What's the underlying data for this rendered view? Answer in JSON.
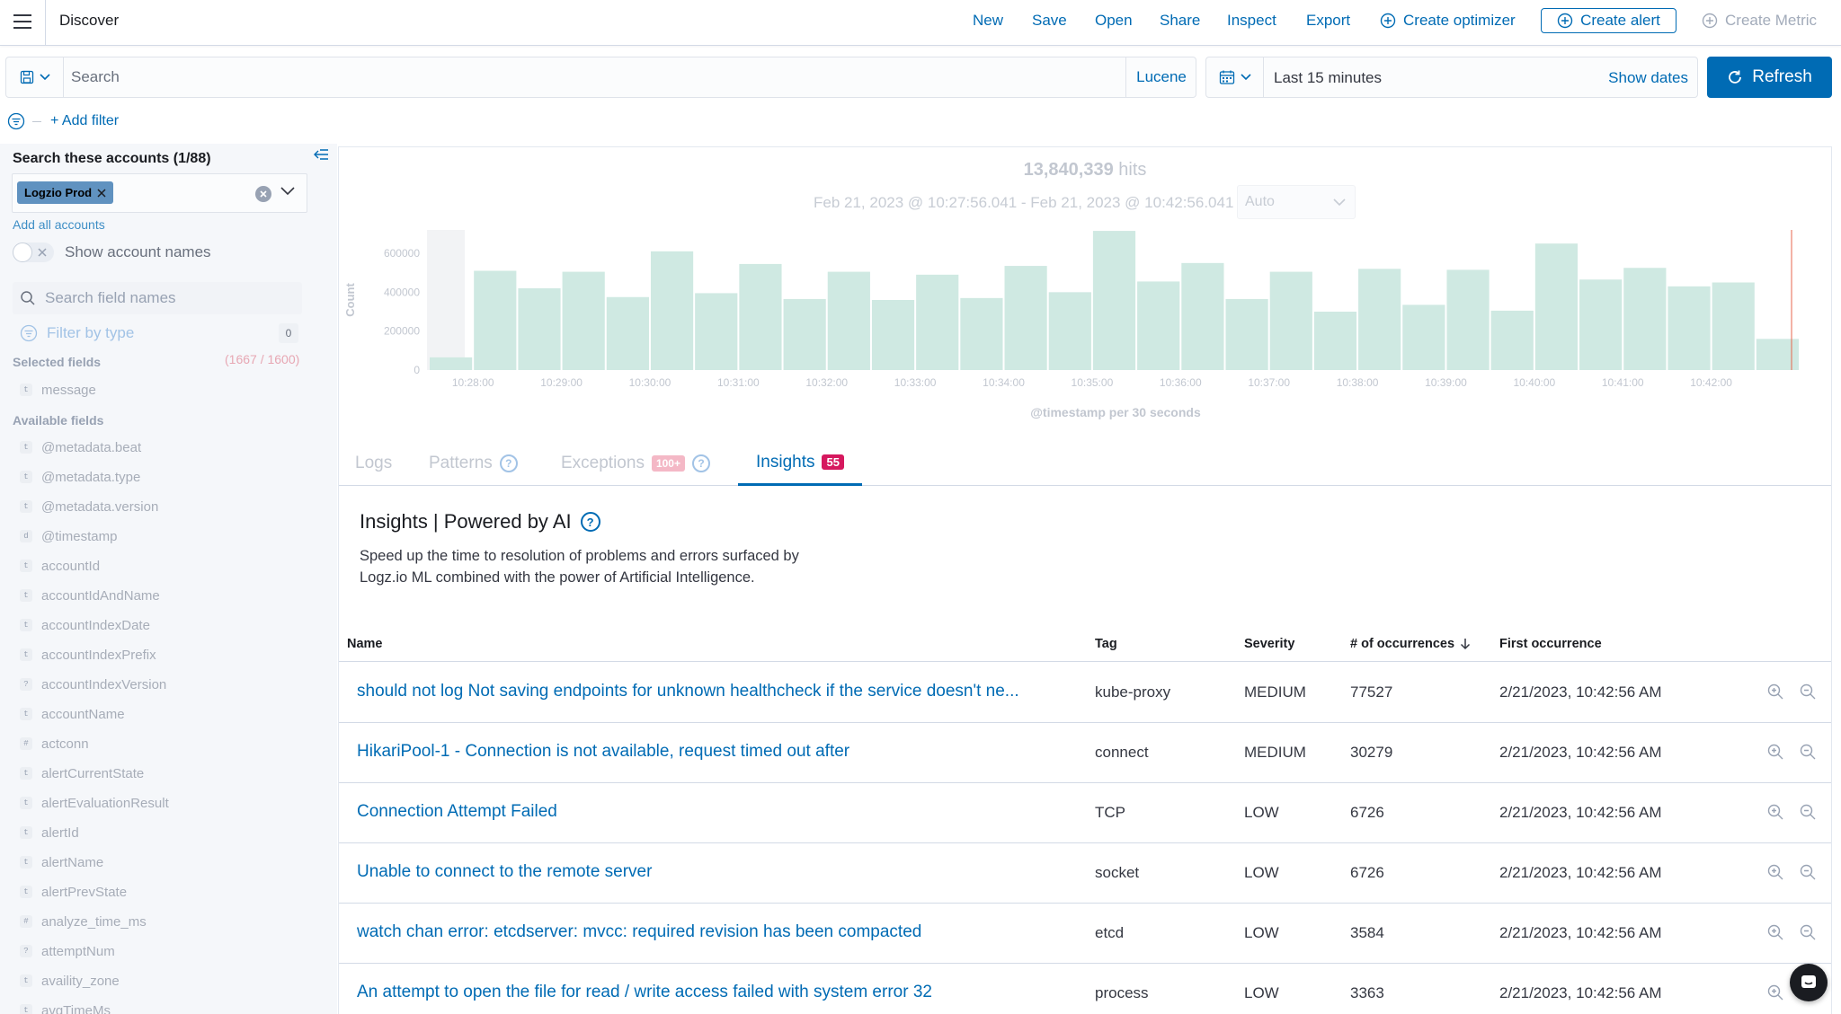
{
  "header": {
    "title": "Discover",
    "links": [
      {
        "label": "New",
        "name": "new-link"
      },
      {
        "label": "Save",
        "name": "save-link"
      },
      {
        "label": "Open",
        "name": "open-link"
      },
      {
        "label": "Share",
        "name": "share-link"
      },
      {
        "label": "Inspect",
        "name": "inspect-link"
      },
      {
        "label": "Export",
        "name": "export-link"
      }
    ],
    "create_optimizer": "Create optimizer",
    "create_alert": "Create alert",
    "create_metric": "Create Metric"
  },
  "query": {
    "placeholder": "Search",
    "language": "Lucene",
    "time_range": "Last 15 minutes",
    "show_dates": "Show dates",
    "refresh": "Refresh"
  },
  "filters": {
    "add_filter": "+ Add filter"
  },
  "sidebar": {
    "accounts_title": "Search these accounts (1/88)",
    "selected_account": "Logzio Prod",
    "add_all": "Add all accounts",
    "show_account_names": "Show account names",
    "field_search_placeholder": "Search field names",
    "filter_by_type": "Filter by type",
    "filter_count": "0",
    "selected_fields_title": "Selected fields",
    "selected_fields_count": "(1667 / 1600)",
    "selected_fields": [
      {
        "type": "t",
        "name": "message"
      }
    ],
    "available_fields_title": "Available fields",
    "available_fields": [
      {
        "type": "t",
        "name": "@metadata.beat"
      },
      {
        "type": "t",
        "name": "@metadata.type"
      },
      {
        "type": "t",
        "name": "@metadata.version"
      },
      {
        "type": "d",
        "name": "@timestamp"
      },
      {
        "type": "t",
        "name": "accountId"
      },
      {
        "type": "t",
        "name": "accountIdAndName"
      },
      {
        "type": "t",
        "name": "accountIndexDate"
      },
      {
        "type": "t",
        "name": "accountIndexPrefix"
      },
      {
        "type": "?",
        "name": "accountIndexVersion"
      },
      {
        "type": "t",
        "name": "accountName"
      },
      {
        "type": "#",
        "name": "actconn"
      },
      {
        "type": "t",
        "name": "alertCurrentState"
      },
      {
        "type": "t",
        "name": "alertEvaluationResult"
      },
      {
        "type": "t",
        "name": "alertId"
      },
      {
        "type": "t",
        "name": "alertName"
      },
      {
        "type": "t",
        "name": "alertPrevState"
      },
      {
        "type": "#",
        "name": "analyze_time_ms"
      },
      {
        "type": "?",
        "name": "attemptNum"
      },
      {
        "type": "t",
        "name": "availity_zone"
      },
      {
        "type": "t",
        "name": "avgTimeMs"
      }
    ]
  },
  "histogram": {
    "hits_value": "13,840,339",
    "hits_label": "hits",
    "date_range": "Feb 21, 2023 @ 10:27:56.041 - Feb 21, 2023 @ 10:42:56.041",
    "interval": "Auto",
    "x_axis_title": "@timestamp per 30 seconds"
  },
  "chart_data": {
    "type": "bar",
    "title": "",
    "xlabel": "@timestamp per 30 seconds",
    "ylabel": "Count",
    "ylim": [
      0,
      720000
    ],
    "y_ticks": [
      "0",
      "200000",
      "400000",
      "600000"
    ],
    "x_tick_labels": [
      "10:28:00",
      "10:29:00",
      "10:30:00",
      "10:31:00",
      "10:32:00",
      "10:33:00",
      "10:34:00",
      "10:35:00",
      "10:36:00",
      "10:37:00",
      "10:38:00",
      "10:39:00",
      "10:40:00",
      "10:41:00",
      "10:42:00"
    ],
    "categories": [
      "10:27:30",
      "10:28:00",
      "10:28:30",
      "10:29:00",
      "10:29:30",
      "10:30:00",
      "10:30:30",
      "10:31:00",
      "10:31:30",
      "10:32:00",
      "10:32:30",
      "10:33:00",
      "10:33:30",
      "10:34:00",
      "10:34:30",
      "10:35:00",
      "10:35:30",
      "10:36:00",
      "10:36:30",
      "10:37:00",
      "10:37:30",
      "10:38:00",
      "10:38:30",
      "10:39:00",
      "10:39:30",
      "10:40:00",
      "10:40:30",
      "10:41:00",
      "10:41:30",
      "10:42:00",
      "10:42:30"
    ],
    "values": [
      65000,
      510000,
      420000,
      505000,
      375000,
      610000,
      395000,
      545000,
      365000,
      505000,
      360000,
      490000,
      370000,
      535000,
      400000,
      715000,
      455000,
      550000,
      365000,
      505000,
      300000,
      520000,
      335000,
      515000,
      305000,
      650000,
      465000,
      525000,
      430000,
      450000,
      160000
    ],
    "colors": {
      "bar": "#cfe9e2",
      "partial": "#e9ebef",
      "marker": "#e7664c"
    },
    "grid": false,
    "legend": "none"
  },
  "tabs": [
    {
      "label": "Logs",
      "badge": ""
    },
    {
      "label": "Patterns",
      "badge": ""
    },
    {
      "label": "Exceptions",
      "badge": "100+"
    },
    {
      "label": "Insights",
      "badge": "55"
    }
  ],
  "insights": {
    "title": "Insights | Powered by AI",
    "description_line1": "Speed up the time to resolution of problems and errors surfaced by",
    "description_line2": "Logz.io ML combined with the power of Artificial Intelligence."
  },
  "table": {
    "columns": [
      "Name",
      "Tag",
      "Severity",
      "# of occurrences",
      "First occurrence"
    ],
    "rows": [
      {
        "name": "should not log Not saving endpoints for unknown healthcheck if the service doesn't ne...",
        "tag": "kube-proxy",
        "severity": "MEDIUM",
        "occurrences": "77527",
        "first": "2/21/2023, 10:42:56 AM"
      },
      {
        "name": "HikariPool-1 - Connection is not available, request timed out after",
        "tag": "connect",
        "severity": "MEDIUM",
        "occurrences": "30279",
        "first": "2/21/2023, 10:42:56 AM"
      },
      {
        "name": "Connection Attempt Failed",
        "tag": "TCP",
        "severity": "LOW",
        "occurrences": "6726",
        "first": "2/21/2023, 10:42:56 AM"
      },
      {
        "name": "Unable to connect to the remote server",
        "tag": "socket",
        "severity": "LOW",
        "occurrences": "6726",
        "first": "2/21/2023, 10:42:56 AM"
      },
      {
        "name": "watch chan error: etcdserver: mvcc: required revision has been compacted",
        "tag": "etcd",
        "severity": "LOW",
        "occurrences": "3584",
        "first": "2/21/2023, 10:42:56 AM"
      },
      {
        "name": "An attempt to open the file for read / write access failed with system error 32",
        "tag": "process",
        "severity": "LOW",
        "occurrences": "3363",
        "first": "2/21/2023, 10:42:56 AM"
      }
    ]
  }
}
